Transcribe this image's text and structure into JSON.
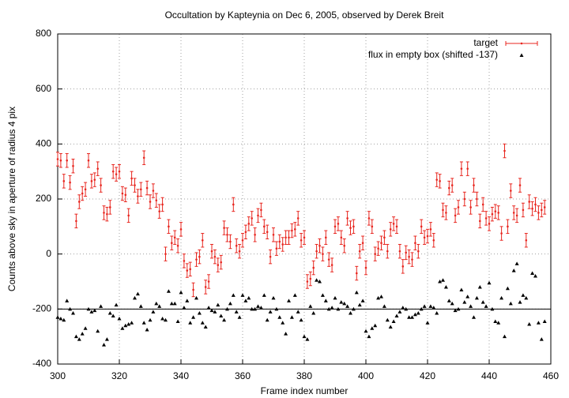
{
  "chart_data": {
    "type": "scatter",
    "title": "Occultation by Kapteynia on Dec 6, 2005, observed by Derek Breit",
    "x_label": "Frame index number",
    "y_label": "Counts above sky in aperture of radius 4 pix",
    "x": [
      300,
      301,
      302,
      303,
      304,
      305,
      306,
      307,
      308,
      309,
      310,
      311,
      312,
      313,
      314,
      315,
      316,
      317,
      318,
      319,
      320,
      321,
      322,
      323,
      324,
      325,
      326,
      327,
      328,
      329,
      330,
      331,
      332,
      333,
      334,
      335,
      336,
      337,
      338,
      339,
      340,
      341,
      342,
      343,
      344,
      345,
      346,
      347,
      348,
      349,
      350,
      351,
      352,
      353,
      354,
      355,
      356,
      357,
      358,
      359,
      360,
      361,
      362,
      363,
      364,
      365,
      366,
      367,
      368,
      369,
      370,
      371,
      372,
      373,
      374,
      375,
      376,
      377,
      378,
      379,
      380,
      381,
      382,
      383,
      384,
      385,
      386,
      387,
      388,
      389,
      390,
      391,
      392,
      393,
      394,
      395,
      396,
      397,
      398,
      399,
      400,
      401,
      402,
      403,
      404,
      405,
      406,
      407,
      408,
      409,
      410,
      411,
      412,
      413,
      414,
      415,
      416,
      417,
      418,
      419,
      420,
      421,
      422,
      423,
      424,
      425,
      426,
      427,
      428,
      429,
      430,
      431,
      432,
      433,
      434,
      435,
      436,
      437,
      438,
      439,
      440,
      441,
      442,
      443,
      444,
      445,
      446,
      447,
      448,
      449,
      450,
      451,
      452,
      453,
      454,
      455,
      456,
      457,
      458
    ],
    "series": [
      {
        "name": "target",
        "color": "#e8261f",
        "error": 25,
        "values": [
          345,
          340,
          265,
          340,
          260,
          320,
          120,
          190,
          220,
          235,
          340,
          265,
          270,
          310,
          250,
          150,
          145,
          170,
          300,
          290,
          300,
          220,
          215,
          140,
          275,
          250,
          210,
          235,
          350,
          240,
          190,
          230,
          195,
          155,
          180,
          0,
          100,
          40,
          60,
          30,
          90,
          -25,
          -60,
          -55,
          -130,
          -20,
          -10,
          50,
          -120,
          -100,
          10,
          -10,
          -40,
          -30,
          95,
          70,
          45,
          180,
          30,
          10,
          50,
          80,
          110,
          130,
          70,
          140,
          160,
          100,
          80,
          -10,
          70,
          20,
          45,
          35,
          60,
          60,
          85,
          90,
          130,
          50,
          60,
          -100,
          -90,
          -50,
          10,
          30,
          0,
          60,
          -20,
          -40,
          100,
          110,
          60,
          30,
          130,
          95,
          100,
          -70,
          10,
          40,
          -50,
          130,
          100,
          0,
          20,
          40,
          60,
          10,
          90,
          110,
          100,
          10,
          -45,
          5,
          -10,
          -20,
          40,
          10,
          100,
          60,
          65,
          90,
          50,
          270,
          265,
          160,
          150,
          240,
          250,
          140,
          170,
          310,
          200,
          310,
          170,
          250,
          200,
          120,
          180,
          130,
          110,
          145,
          155,
          150,
          75,
          375,
          100,
          230,
          150,
          140,
          250,
          160,
          50,
          190,
          165,
          180,
          150,
          160,
          170
        ]
      },
      {
        "name": "flux in empty box (shifted -137)",
        "color": "#000000",
        "values": [
          -230,
          -235,
          -240,
          -170,
          -200,
          -215,
          -300,
          -310,
          -290,
          -270,
          -200,
          -210,
          -205,
          -280,
          -190,
          -330,
          -310,
          -215,
          -225,
          -185,
          -235,
          -270,
          -260,
          -255,
          -250,
          -160,
          -145,
          -190,
          -250,
          -275,
          -240,
          -210,
          -180,
          -190,
          -235,
          -240,
          -135,
          -180,
          -180,
          -245,
          -140,
          -195,
          -170,
          -250,
          -230,
          -160,
          -215,
          -250,
          -265,
          -195,
          -205,
          -210,
          -185,
          -225,
          -240,
          -200,
          -180,
          -150,
          -210,
          -230,
          -150,
          -170,
          -160,
          -200,
          -200,
          -190,
          -195,
          -150,
          -240,
          -210,
          -160,
          -200,
          -230,
          -250,
          -290,
          -170,
          -230,
          -150,
          -210,
          -240,
          -300,
          -310,
          -190,
          -215,
          -95,
          -100,
          -150,
          -170,
          -200,
          -195,
          -160,
          -200,
          -175,
          -180,
          -190,
          -215,
          -200,
          -140,
          -185,
          -170,
          -280,
          -300,
          -270,
          -260,
          -160,
          -155,
          -190,
          -240,
          -265,
          -245,
          -225,
          -210,
          -195,
          -200,
          -230,
          -230,
          -220,
          -215,
          -200,
          -190,
          -250,
          -190,
          -195,
          -215,
          -100,
          -95,
          -120,
          -170,
          -180,
          -205,
          -200,
          -130,
          -175,
          -155,
          -190,
          -230,
          -160,
          -120,
          -175,
          -190,
          -105,
          -200,
          -245,
          -250,
          -160,
          -300,
          -125,
          -180,
          -60,
          -35,
          -175,
          -150,
          -160,
          -255,
          -70,
          -80,
          -250,
          -310,
          -245
        ]
      }
    ],
    "reference_line": -200,
    "xlim": [
      300,
      460
    ],
    "xticks": [
      300,
      320,
      340,
      360,
      380,
      400,
      420,
      440,
      460
    ],
    "ylim": [
      -400,
      800
    ],
    "yticks": [
      -400,
      -200,
      0,
      200,
      400,
      600,
      800
    ],
    "grid": true,
    "legend": "top-right"
  }
}
